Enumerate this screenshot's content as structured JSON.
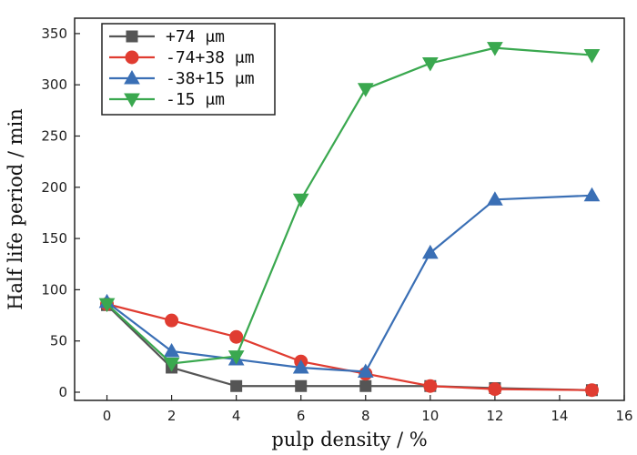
{
  "chart_data": {
    "type": "line",
    "title": "",
    "xlabel": "pulp density / %",
    "ylabel": "Half life period / min",
    "xlim": [
      -1,
      16
    ],
    "ylim": [
      -8,
      365
    ],
    "xticks": [
      0,
      2,
      4,
      6,
      8,
      10,
      12,
      14,
      16
    ],
    "yticks": [
      0,
      50,
      100,
      150,
      200,
      250,
      300,
      350
    ],
    "legend_position": "top-left",
    "grid": false,
    "x": [
      0,
      2,
      4,
      6,
      8,
      10,
      12,
      15
    ],
    "series": [
      {
        "name": "+74 μm",
        "color": "#555555",
        "marker": "square",
        "values": [
          85,
          24,
          6,
          6,
          6,
          6,
          4,
          2
        ]
      },
      {
        "name": "-74+38 μm",
        "color": "#e03c31",
        "marker": "circle",
        "values": [
          86,
          70,
          54,
          30,
          18,
          6,
          3,
          2
        ]
      },
      {
        "name": "-38+15 μm",
        "color": "#3a6fb5",
        "marker": "triangle-up",
        "values": [
          88,
          40,
          32,
          24,
          20,
          136,
          188,
          192
        ]
      },
      {
        "name": "-15 μm",
        "color": "#3aa84f",
        "marker": "triangle-down",
        "values": [
          86,
          28,
          35,
          188,
          296,
          321,
          336,
          329
        ]
      }
    ]
  }
}
